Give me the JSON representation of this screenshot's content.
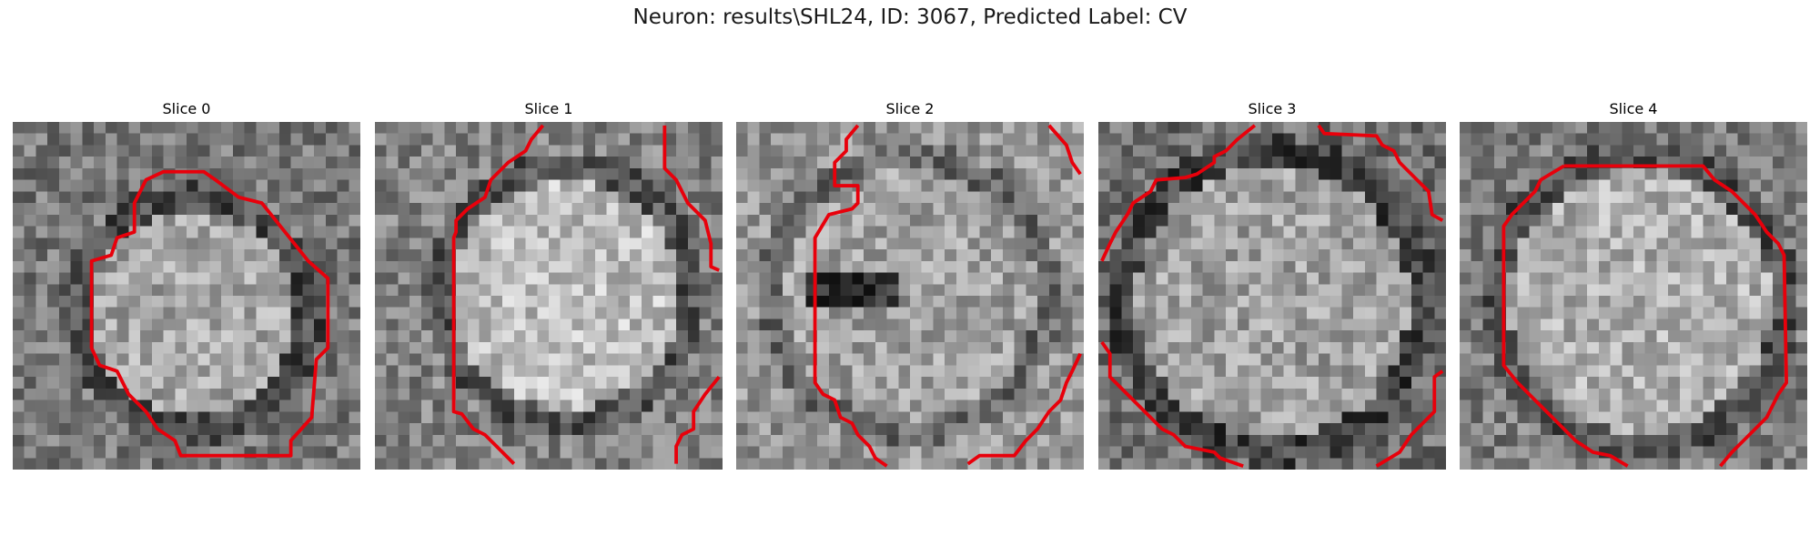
{
  "figure": {
    "title": "Neuron: results\\SHL24, ID: 3067, Predicted Label: CV"
  },
  "slices": [
    {
      "label": "Slice 0"
    },
    {
      "label": "Slice 1"
    },
    {
      "label": "Slice 2"
    },
    {
      "label": "Slice 3"
    },
    {
      "label": "Slice 4"
    }
  ],
  "colors": {
    "contour": "#e8000b",
    "background": "#ffffff"
  }
}
